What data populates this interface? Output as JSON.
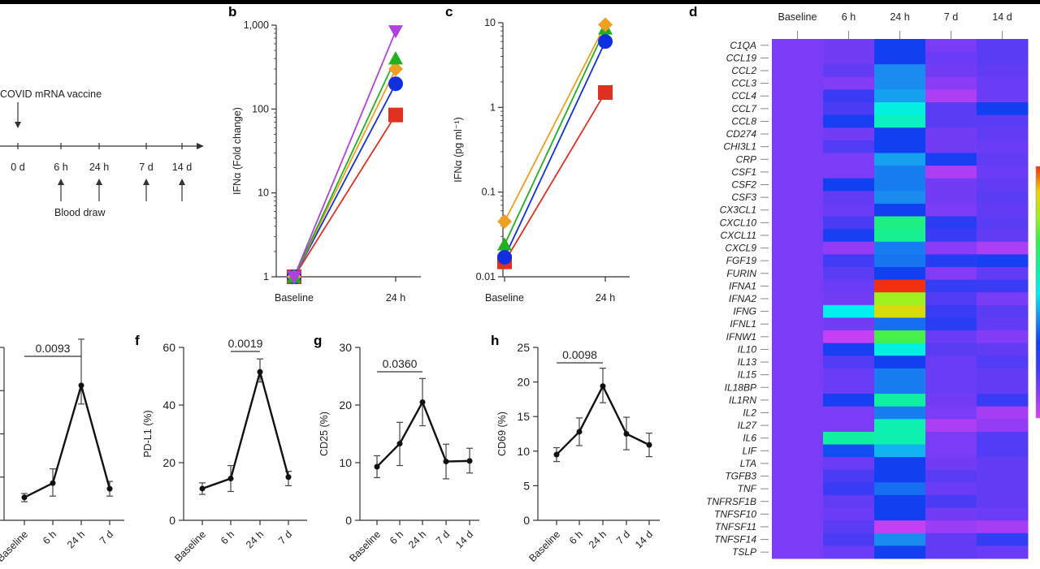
{
  "panel_letters": {
    "b": "b",
    "c": "c",
    "d": "d",
    "f": "f",
    "g": "g",
    "h": "h"
  },
  "timeline": {
    "vaccine_label": "COVID mRNA vaccine",
    "blood_draw_label": "Blood draw",
    "ticks": [
      "0 d",
      "6 h",
      "24 h",
      "7 d",
      "14 d"
    ],
    "blood_draw_at": [
      "6 h",
      "24 h",
      "7 d",
      "14 d"
    ]
  },
  "chart_data": [
    {
      "id": "b",
      "type": "line",
      "ylabel": "IFNα (Fold change)",
      "yscale": "log",
      "ylim": [
        1,
        1000
      ],
      "yticks": [
        "1",
        "10",
        "100",
        "1,000"
      ],
      "categories": [
        "Baseline",
        "24 h"
      ],
      "series": [
        {
          "color": "#e03020",
          "marker": "square",
          "values": [
            1,
            85
          ]
        },
        {
          "color": "#1030e0",
          "marker": "circle",
          "values": [
            1,
            200
          ]
        },
        {
          "color": "#f0a020",
          "marker": "diamond",
          "values": [
            1,
            300
          ]
        },
        {
          "color": "#20b020",
          "marker": "triangle-up",
          "values": [
            1,
            400
          ]
        },
        {
          "color": "#b040e0",
          "marker": "triangle-down",
          "values": [
            1,
            850
          ]
        }
      ]
    },
    {
      "id": "c",
      "type": "line",
      "ylabel": "IFNα (pg ml⁻¹)",
      "yscale": "log",
      "ylim": [
        0.01,
        10
      ],
      "yticks": [
        "0.01",
        "0.1",
        "1",
        "10"
      ],
      "categories": [
        "Baseline",
        "24 h"
      ],
      "series": [
        {
          "color": "#e03020",
          "marker": "square",
          "values": [
            0.015,
            1.5
          ]
        },
        {
          "color": "#20b020",
          "marker": "triangle-up",
          "values": [
            0.024,
            8.5
          ]
        },
        {
          "color": "#f0a020",
          "marker": "diamond",
          "values": [
            0.045,
            9.5
          ]
        },
        {
          "color": "#1030e0",
          "marker": "circle",
          "values": [
            0.017,
            6
          ]
        }
      ]
    },
    {
      "id": "e",
      "type": "line",
      "ylabel": "",
      "ylim": [
        0,
        4
      ],
      "yticks": [
        "",
        "",
        "",
        "",
        ""
      ],
      "categories": [
        "Baseline",
        "6 h",
        "24 h",
        "7 d"
      ],
      "values": [
        0.53,
        0.86,
        3.12,
        0.73
      ],
      "error_low": [
        0.43,
        0.56,
        2.69,
        0.56
      ],
      "error_high": [
        0.62,
        1.19,
        4.19,
        0.9
      ],
      "pvalue": {
        "text": "0.0093",
        "from": "Baseline",
        "to": "24 h"
      }
    },
    {
      "id": "f",
      "type": "line",
      "ylabel": "PD-L1 (%)",
      "ylim": [
        0,
        60
      ],
      "yticks": [
        "0",
        "20",
        "40",
        "60"
      ],
      "categories": [
        "Baseline",
        "6 h",
        "24 h",
        "7 d"
      ],
      "values": [
        11,
        14.5,
        51.5,
        15
      ],
      "error_low": [
        9,
        10,
        48,
        12
      ],
      "error_high": [
        13,
        19,
        56,
        17
      ],
      "pvalue": {
        "text": "0.0019",
        "from": "6 h",
        "to": "24 h"
      }
    },
    {
      "id": "g",
      "type": "line",
      "ylabel": "CD25 (%)",
      "ylim": [
        0,
        30
      ],
      "yticks": [
        "0",
        "10",
        "20",
        "30"
      ],
      "categories": [
        "Baseline",
        "6 h",
        "24 h",
        "7 d",
        "14 d"
      ],
      "values": [
        9.3,
        13.3,
        20.5,
        10.2,
        10.3
      ],
      "error_low": [
        7.4,
        9.5,
        16.4,
        7.2,
        8.2
      ],
      "error_high": [
        11.2,
        17,
        24.6,
        13.2,
        12.5
      ],
      "pvalue": {
        "text": "0.0360",
        "from": "Baseline",
        "to": "24 h"
      }
    },
    {
      "id": "h",
      "type": "line",
      "ylabel": "CD69 (%)",
      "ylim": [
        0,
        25
      ],
      "yticks": [
        "0",
        "5",
        "10",
        "15",
        "20",
        "25"
      ],
      "categories": [
        "Baseline",
        "6 h",
        "24 h",
        "7 d",
        "14 d"
      ],
      "values": [
        9.5,
        12.8,
        19.4,
        12.5,
        10.9
      ],
      "error_low": [
        8.5,
        10.8,
        17,
        10.2,
        9.2
      ],
      "error_high": [
        10.5,
        14.8,
        22,
        14.9,
        12.6
      ],
      "pvalue": {
        "text": "0.0098",
        "from": "Baseline",
        "to": "24 h"
      }
    },
    {
      "id": "d",
      "type": "heatmap",
      "columns": [
        "Baseline",
        "6 h",
        "24 h",
        "7 d",
        "14 d"
      ],
      "colorscale": [
        "#e040f0",
        "#8a3cf5",
        "#3a3cf5",
        "#1040f0",
        "#1a8cf0",
        "#00f0f0",
        "#10f0a0",
        "#30f050",
        "#a0f020",
        "#f0d000",
        "#f03010"
      ],
      "value_range": [
        0,
        1
      ],
      "rows": [
        {
          "gene": "C1QA",
          "values": [
            0.12,
            0.13,
            0.3,
            0.12,
            0.16
          ]
        },
        {
          "gene": "CCL19",
          "values": [
            0.12,
            0.13,
            0.3,
            0.14,
            0.16
          ]
        },
        {
          "gene": "CCL2",
          "values": [
            0.12,
            0.15,
            0.4,
            0.13,
            0.15
          ]
        },
        {
          "gene": "CCL3",
          "values": [
            0.12,
            0.11,
            0.4,
            0.1,
            0.14
          ]
        },
        {
          "gene": "CCL4",
          "values": [
            0.12,
            0.2,
            0.42,
            0.06,
            0.14
          ]
        },
        {
          "gene": "CCL7",
          "values": [
            0.12,
            0.18,
            0.52,
            0.16,
            0.3
          ]
        },
        {
          "gene": "CCL8",
          "values": [
            0.12,
            0.28,
            0.56,
            0.16,
            0.16
          ]
        },
        {
          "gene": "CD274",
          "values": [
            0.12,
            0.13,
            0.3,
            0.13,
            0.15
          ]
        },
        {
          "gene": "CHI3L1",
          "values": [
            0.12,
            0.17,
            0.3,
            0.13,
            0.14
          ]
        },
        {
          "gene": "CRP",
          "values": [
            0.12,
            0.12,
            0.42,
            0.28,
            0.15
          ]
        },
        {
          "gene": "CSF1",
          "values": [
            0.12,
            0.12,
            0.38,
            0.06,
            0.14
          ]
        },
        {
          "gene": "CSF2",
          "values": [
            0.12,
            0.3,
            0.38,
            0.13,
            0.15
          ]
        },
        {
          "gene": "CSF3",
          "values": [
            0.12,
            0.15,
            0.4,
            0.13,
            0.16
          ]
        },
        {
          "gene": "CX3CL1",
          "values": [
            0.12,
            0.14,
            0.3,
            0.12,
            0.15
          ]
        },
        {
          "gene": "CXCL10",
          "values": [
            0.12,
            0.18,
            0.64,
            0.24,
            0.16
          ]
        },
        {
          "gene": "CXCL11",
          "values": [
            0.12,
            0.28,
            0.62,
            0.2,
            0.15
          ]
        },
        {
          "gene": "CXCL9",
          "values": [
            0.12,
            0.09,
            0.38,
            0.1,
            0.06
          ]
        },
        {
          "gene": "FGF19",
          "values": [
            0.12,
            0.19,
            0.37,
            0.25,
            0.28
          ]
        },
        {
          "gene": "FURIN",
          "values": [
            0.12,
            0.16,
            0.3,
            0.11,
            0.15
          ]
        },
        {
          "gene": "IFNA1",
          "values": [
            0.12,
            0.14,
            1.0,
            0.22,
            0.2
          ]
        },
        {
          "gene": "IFNA2",
          "values": [
            0.12,
            0.13,
            0.8,
            0.17,
            0.12
          ]
        },
        {
          "gene": "IFNG",
          "values": [
            0.12,
            0.5,
            0.87,
            0.2,
            0.16
          ]
        },
        {
          "gene": "IFNL1",
          "values": [
            0.12,
            0.13,
            0.36,
            0.24,
            0.15
          ]
        },
        {
          "gene": "IFNW1",
          "values": [
            0.12,
            0.03,
            0.72,
            0.14,
            0.11
          ]
        },
        {
          "gene": "IL10",
          "values": [
            0.12,
            0.28,
            0.52,
            0.16,
            0.15
          ]
        },
        {
          "gene": "IL13",
          "values": [
            0.12,
            0.17,
            0.3,
            0.14,
            0.17
          ]
        },
        {
          "gene": "IL15",
          "values": [
            0.12,
            0.14,
            0.38,
            0.14,
            0.15
          ]
        },
        {
          "gene": "IL18BP",
          "values": [
            0.12,
            0.14,
            0.38,
            0.14,
            0.15
          ]
        },
        {
          "gene": "IL1RN",
          "values": [
            0.12,
            0.28,
            0.6,
            0.13,
            0.2
          ]
        },
        {
          "gene": "IL2",
          "values": [
            0.12,
            0.12,
            0.38,
            0.12,
            0.07
          ]
        },
        {
          "gene": "IL27",
          "values": [
            0.12,
            0.12,
            0.58,
            0.06,
            0.09
          ]
        },
        {
          "gene": "IL6",
          "values": [
            0.12,
            0.6,
            0.58,
            0.12,
            0.17
          ]
        },
        {
          "gene": "LIF",
          "values": [
            0.12,
            0.32,
            0.44,
            0.12,
            0.17
          ]
        },
        {
          "gene": "LTA",
          "values": [
            0.12,
            0.14,
            0.3,
            0.13,
            0.15
          ]
        },
        {
          "gene": "TGFB3",
          "values": [
            0.12,
            0.18,
            0.3,
            0.16,
            0.15
          ]
        },
        {
          "gene": "TNF",
          "values": [
            0.12,
            0.2,
            0.36,
            0.14,
            0.15
          ]
        },
        {
          "gene": "TNFRSF1B",
          "values": [
            0.12,
            0.15,
            0.3,
            0.18,
            0.15
          ]
        },
        {
          "gene": "TNFSF10",
          "values": [
            0.12,
            0.14,
            0.3,
            0.13,
            0.14
          ]
        },
        {
          "gene": "TNFSF11",
          "values": [
            0.12,
            0.16,
            0.03,
            0.08,
            0.07
          ]
        },
        {
          "gene": "TNFSF14",
          "values": [
            0.12,
            0.18,
            0.4,
            0.15,
            0.22
          ]
        },
        {
          "gene": "TSLP",
          "values": [
            0.12,
            0.14,
            0.3,
            0.15,
            0.14
          ]
        }
      ]
    }
  ]
}
